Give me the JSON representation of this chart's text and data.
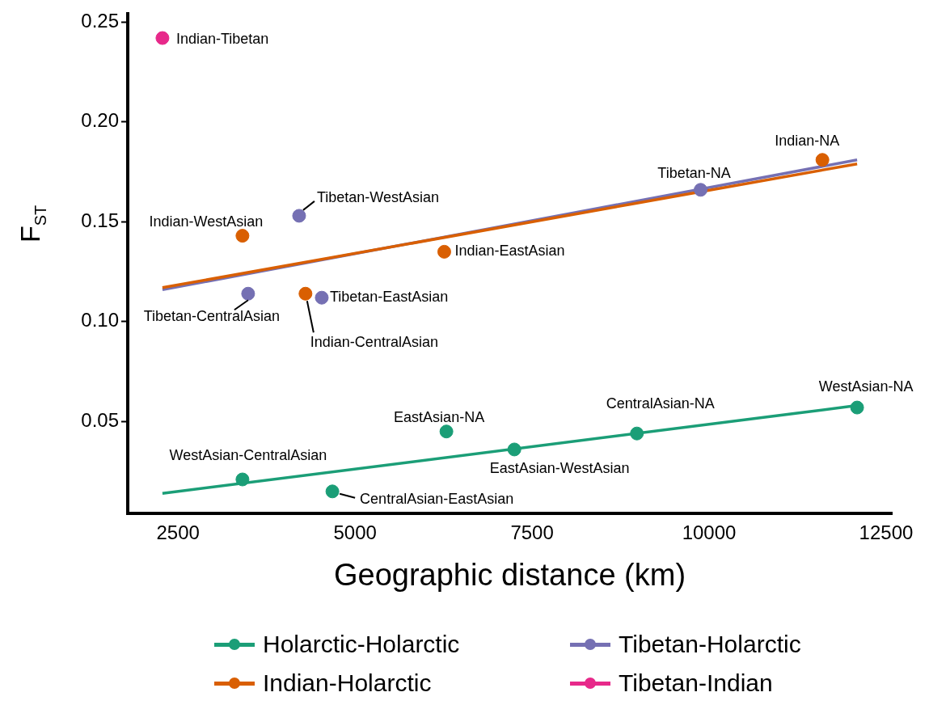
{
  "chart_data": {
    "type": "scatter",
    "xlabel": "Geographic distance (km)",
    "ylabel": "F$_{ST}$",
    "xlim": [
      1790,
      12580
    ],
    "ylim": [
      0.004,
      0.254
    ],
    "xticks": [
      2500,
      5000,
      7500,
      10000,
      12500
    ],
    "yticks": [
      {
        "value": 0.05,
        "label": "0.05"
      },
      {
        "value": 0.1,
        "label": "0.10"
      },
      {
        "value": 0.15,
        "label": "0.15"
      },
      {
        "value": 0.2,
        "label": "0.20"
      },
      {
        "value": 0.25,
        "label": "0.25"
      }
    ],
    "grid": false,
    "legend": "bottom",
    "marker": "circle",
    "series": [
      {
        "name": "Holarctic-Holarctic",
        "color": "#1b9e77",
        "x": [
          3410,
          4680,
          6290,
          7250,
          8980,
          12090
        ],
        "values": [
          0.021,
          0.015,
          0.045,
          0.036,
          0.044,
          0.057
        ]
      },
      {
        "name": "Indian-Holarctic",
        "color": "#d95f02",
        "x": [
          3410,
          4300,
          6260,
          11600
        ],
        "values": [
          0.143,
          0.114,
          0.135,
          0.181
        ]
      },
      {
        "name": "Tibetan-Holarctic",
        "color": "#7570b3",
        "x": [
          3490,
          4210,
          4530,
          9880
        ],
        "values": [
          0.114,
          0.153,
          0.112,
          0.166
        ]
      },
      {
        "name": "Tibetan-Indian",
        "color": "#e7298a",
        "x": [
          2280
        ],
        "values": [
          0.242
        ]
      },
      {
        "type": "line",
        "marker": "none",
        "color": "#1b9e77",
        "x": [
          2280,
          12090
        ],
        "values": [
          0.014,
          0.058
        ]
      },
      {
        "type": "line",
        "marker": "none",
        "color": "#d95f02",
        "x": [
          2280,
          12090
        ],
        "values": [
          0.117,
          0.179
        ]
      },
      {
        "type": "line",
        "marker": "none",
        "color": "#7570b3",
        "x": [
          2280,
          12090
        ],
        "values": [
          0.116,
          0.181
        ]
      }
    ],
    "annotations": [
      {
        "text": "WestAsian-CentralAsian",
        "x": 3410,
        "y": 0.021
      },
      {
        "text": "CentralAsian-EastAsian",
        "x": 4680,
        "y": 0.015
      },
      {
        "text": "EastAsian-NA",
        "x": 6290,
        "y": 0.045
      },
      {
        "text": "EastAsian-WestAsian",
        "x": 7250,
        "y": 0.036
      },
      {
        "text": "CentralAsian-NA",
        "x": 8980,
        "y": 0.044
      },
      {
        "text": "WestAsian-NA",
        "x": 12090,
        "y": 0.057
      },
      {
        "text": "Indian-WestAsian",
        "x": 3410,
        "y": 0.143
      },
      {
        "text": "Indian-CentralAsian",
        "x": 4300,
        "y": 0.114
      },
      {
        "text": "Indian-EastAsian",
        "x": 6260,
        "y": 0.135
      },
      {
        "text": "Indian-NA",
        "x": 11600,
        "y": 0.181
      },
      {
        "text": "Tibetan-CentralAsian",
        "x": 3490,
        "y": 0.114
      },
      {
        "text": "Tibetan-WestAsian",
        "x": 4210,
        "y": 0.153
      },
      {
        "text": "Tibetan-EastAsian",
        "x": 4530,
        "y": 0.112
      },
      {
        "text": "Tibetan-NA",
        "x": 9880,
        "y": 0.166
      },
      {
        "text": "Indian-Tibetan",
        "x": 2280,
        "y": 0.242
      }
    ]
  }
}
